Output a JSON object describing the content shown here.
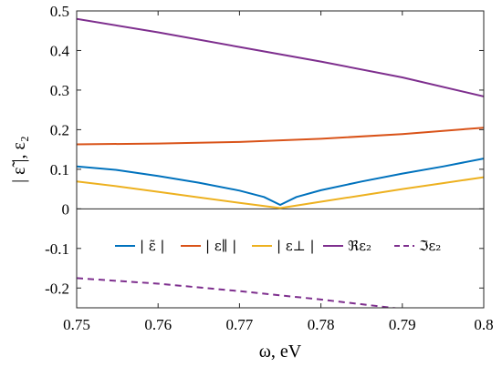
{
  "chart_data": {
    "type": "line",
    "xlabel": "ω, eV",
    "ylabel": "| ε̃ |, ε₂",
    "xlim": [
      0.75,
      0.8
    ],
    "ylim": [
      -0.25,
      0.5
    ],
    "grid": false,
    "legend_placement": "lower-center",
    "x_ticks": [
      0.75,
      0.76,
      0.77,
      0.78,
      0.79,
      0.8
    ],
    "x_tick_labels": [
      "0.75",
      "0.76",
      "0.77",
      "0.78",
      "0.79",
      "0.8"
    ],
    "y_ticks": [
      -0.2,
      -0.1,
      0,
      0.1,
      0.2,
      0.3,
      0.4,
      0.5
    ],
    "y_tick_labels": [
      "-0.2",
      "-0.1",
      "0",
      "0.1",
      "0.2",
      "0.3",
      "0.4",
      "0.5"
    ],
    "zero_line": true,
    "series": [
      {
        "name": "| ε̃ |",
        "color": "#0072bd",
        "dash": "solid",
        "x": [
          0.75,
          0.755,
          0.76,
          0.765,
          0.77,
          0.773,
          0.775,
          0.777,
          0.78,
          0.785,
          0.79,
          0.795,
          0.8
        ],
        "y": [
          0.107,
          0.098,
          0.083,
          0.066,
          0.046,
          0.03,
          0.01,
          0.03,
          0.047,
          0.069,
          0.089,
          0.107,
          0.127
        ]
      },
      {
        "name": "| ε∥ |",
        "color": "#d95319",
        "dash": "solid",
        "x": [
          0.75,
          0.76,
          0.77,
          0.78,
          0.79,
          0.8
        ],
        "y": [
          0.163,
          0.165,
          0.169,
          0.177,
          0.189,
          0.205
        ]
      },
      {
        "name": "| ε⊥ |",
        "color": "#edb120",
        "dash": "solid",
        "x": [
          0.75,
          0.755,
          0.76,
          0.765,
          0.77,
          0.775,
          0.78,
          0.785,
          0.79,
          0.795,
          0.8
        ],
        "y": [
          0.069,
          0.057,
          0.043,
          0.029,
          0.015,
          0.002,
          0.018,
          0.034,
          0.05,
          0.065,
          0.08
        ]
      },
      {
        "name": "ℜε₂",
        "color": "#7e2f8e",
        "dash": "solid",
        "x": [
          0.75,
          0.76,
          0.77,
          0.78,
          0.79,
          0.8
        ],
        "y": [
          0.48,
          0.446,
          0.409,
          0.372,
          0.332,
          0.284
        ]
      },
      {
        "name": "ℑε₂",
        "color": "#7e2f8e",
        "dash": "dashed",
        "x": [
          0.75,
          0.76,
          0.77,
          0.78,
          0.79,
          0.8
        ],
        "y": [
          -0.175,
          -0.189,
          -0.208,
          -0.229,
          -0.253,
          -0.281
        ]
      }
    ]
  }
}
